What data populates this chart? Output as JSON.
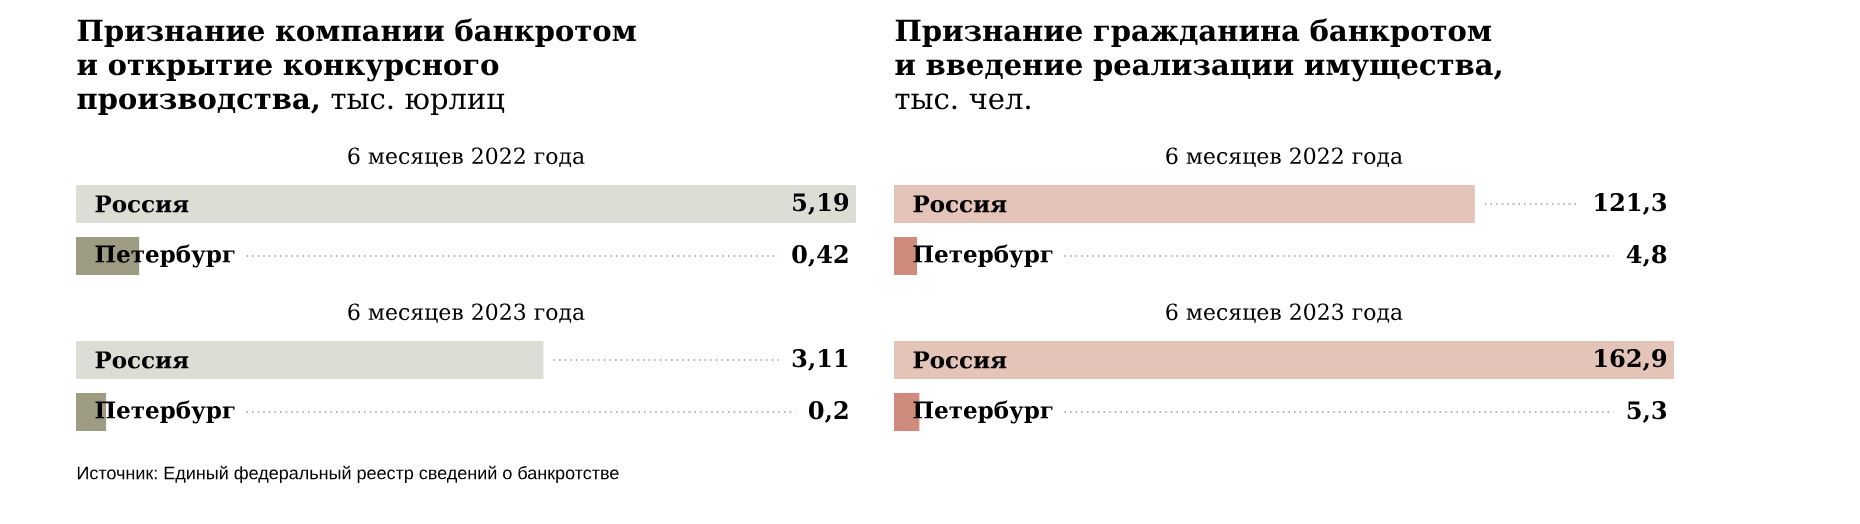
{
  "chart_data": [
    {
      "type": "bar",
      "orientation": "horizontal",
      "title": "**Признание компании банкротом и открытие конкурсного производства,** тыс. юрлиц",
      "categories": [
        "Россия",
        "Петербург",
        "Россия",
        "Петербург"
      ],
      "values": [
        5.19,
        0.42,
        3.11,
        0.2
      ],
      "value_labels": [
        "5,19",
        "0,42",
        "3,11",
        "0,2"
      ],
      "colors": [
        "#dcddd5",
        "#9d9b82",
        "#dcddd5",
        "#9d9b82"
      ],
      "annotations": [
        "6 месяцев 2022 года",
        "6 месяцев 2023 года",
        "Источник: Единый федеральный реестр сведений о банкротстве"
      ]
    },
    {
      "type": "bar",
      "orientation": "horizontal",
      "title": "**Признание гражданина банкротом и введение реализации имущества,** тыс. чел.",
      "categories": [
        "Россия",
        "Петербург",
        "Россия",
        "Петербург"
      ],
      "values": [
        121.3,
        4.8,
        162.9,
        5.3
      ],
      "value_labels": [
        "121,3",
        "4,8",
        "162,9",
        "5,3"
      ],
      "colors": [
        "#e4c4b8",
        "#cf8c7c",
        "#e4c4b8",
        "#cf8c7c"
      ],
      "annotations": [
        "6 месяцев 2022 года",
        "6 месяцев 2023 года"
      ]
    }
  ]
}
